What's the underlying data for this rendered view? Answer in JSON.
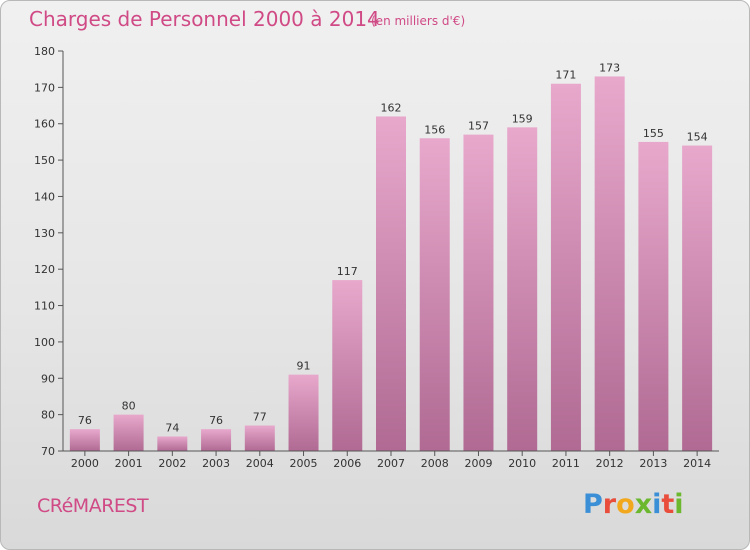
{
  "header": {
    "title": "Charges de Personnel 2000 à 2014",
    "subtitle": "(en milliers d'€)"
  },
  "footer": {
    "commune": "CRéMAREST",
    "logo": {
      "letters": [
        "P",
        "r",
        "o",
        "x",
        "i",
        "t",
        "i"
      ],
      "colors": [
        "#3a8fd6",
        "#e94e3c",
        "#f2a81d",
        "#6bb82e",
        "#3a8fd6",
        "#e94e3c",
        "#6bb82e"
      ]
    }
  },
  "colors": {
    "bar_top": "#e8a8cc",
    "bar_bottom": "#b06a93",
    "accent": "#d04a86",
    "axis": "#555555"
  },
  "chart_data": {
    "type": "bar",
    "categories": [
      "2000",
      "2001",
      "2002",
      "2003",
      "2004",
      "2005",
      "2006",
      "2007",
      "2008",
      "2009",
      "2010",
      "2011",
      "2012",
      "2013",
      "2014"
    ],
    "values": [
      76,
      80,
      74,
      76,
      77,
      91,
      117,
      162,
      156,
      157,
      159,
      171,
      173,
      155,
      154
    ],
    "ylim": [
      70,
      180
    ],
    "yticks": [
      70,
      80,
      90,
      100,
      110,
      120,
      130,
      140,
      150,
      160,
      170,
      180
    ],
    "grid": false,
    "legend": "none"
  }
}
